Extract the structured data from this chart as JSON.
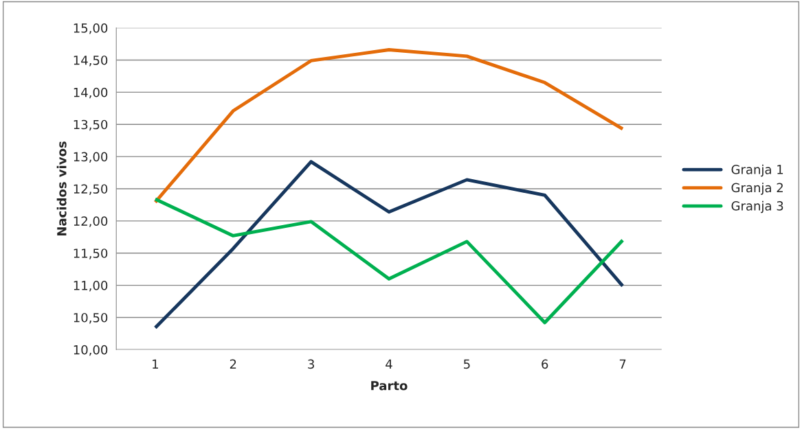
{
  "chart_data": {
    "type": "line",
    "xlabel": "Parto",
    "ylabel": "Nacidos vivos",
    "categories": [
      "1",
      "2",
      "3",
      "4",
      "5",
      "6",
      "7"
    ],
    "series": [
      {
        "name": "Granja 1",
        "color": "#17375e",
        "values": [
          10.34,
          11.57,
          12.92,
          12.14,
          12.64,
          12.4,
          10.99
        ]
      },
      {
        "name": "Granja 2",
        "color": "#e46c0a",
        "values": [
          12.29,
          13.71,
          14.49,
          14.66,
          14.56,
          14.15,
          13.43
        ]
      },
      {
        "name": "Granja 3",
        "color": "#00b050",
        "values": [
          12.34,
          11.77,
          11.99,
          11.1,
          11.68,
          10.42,
          11.7
        ]
      }
    ],
    "ylim": [
      10,
      15
    ],
    "yticks": [
      {
        "value": 10,
        "label": "10,00"
      },
      {
        "value": 10.5,
        "label": "10,50"
      },
      {
        "value": 11,
        "label": "11,00"
      },
      {
        "value": 11.5,
        "label": "11,50"
      },
      {
        "value": 12,
        "label": "12,00"
      },
      {
        "value": 12.5,
        "label": "12,50"
      },
      {
        "value": 13,
        "label": "13,00"
      },
      {
        "value": 13.5,
        "label": "13,50"
      },
      {
        "value": 14,
        "label": "14,00"
      },
      {
        "value": 14.5,
        "label": "14,50"
      },
      {
        "value": 15,
        "label": "15,00"
      }
    ],
    "grid": "y",
    "legend": "right",
    "marker": "none",
    "line_style": "solid"
  }
}
